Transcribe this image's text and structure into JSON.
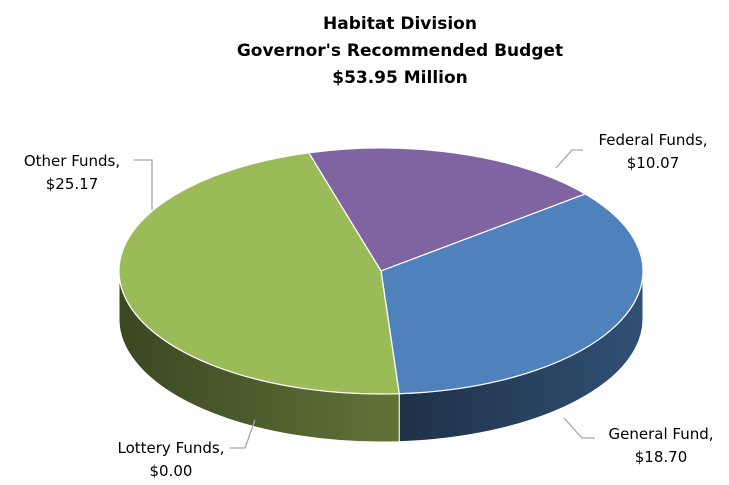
{
  "chart_data": {
    "type": "pie",
    "title": [
      "Habitat Division",
      "Governor's Recommended Budget",
      "$53.95 Million"
    ],
    "slices": [
      {
        "label": "Federal Funds,",
        "value_text": "$10.07",
        "value": 10.07,
        "color": "#8064a2"
      },
      {
        "label": "General Fund,",
        "value_text": "$18.70",
        "value": 18.7,
        "color": "#4f81bd"
      },
      {
        "label": "Lottery Funds,",
        "value_text": "$0.00",
        "value": 0.0,
        "color": "#c0504d"
      },
      {
        "label": "Other Funds,",
        "value_text": "$25.17",
        "value": 25.17,
        "color": "#9bbb59"
      }
    ],
    "style": "3d-pie",
    "legend": "none"
  }
}
